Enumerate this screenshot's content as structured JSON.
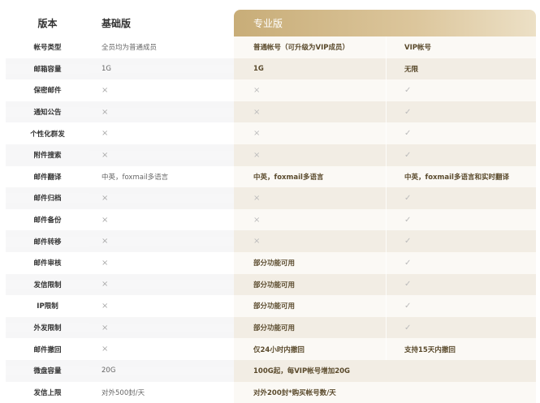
{
  "header": {
    "label": "版本",
    "basic": "基础版",
    "pro": "专业版"
  },
  "colors": {
    "pro_header": "#c8ad78",
    "pro_text": "#5a4a2c",
    "pro_row": "#f2ede4"
  },
  "rows": [
    {
      "label": "帐号类型",
      "basic": "全员均为普通成员",
      "pro": "普通帐号（可升级为VIP成员）",
      "vip": "VIP帐号"
    },
    {
      "label": "邮箱容量",
      "basic": "1G",
      "pro": "1G",
      "vip": "无限"
    },
    {
      "label": "保密邮件",
      "basic": "×",
      "pro": "×",
      "vip": "✓"
    },
    {
      "label": "通知公告",
      "basic": "×",
      "pro": "×",
      "vip": "✓"
    },
    {
      "label": "个性化群发",
      "basic": "×",
      "pro": "×",
      "vip": "✓"
    },
    {
      "label": "附件搜索",
      "basic": "×",
      "pro": "×",
      "vip": "✓"
    },
    {
      "label": "邮件翻译",
      "basic": "中英，foxmail多语言",
      "pro": "中英，foxmail多语言",
      "vip": "中英，foxmail多语言和实时翻译"
    },
    {
      "label": "邮件归档",
      "basic": "×",
      "pro": "×",
      "vip": "✓"
    },
    {
      "label": "邮件备份",
      "basic": "×",
      "pro": "×",
      "vip": "✓"
    },
    {
      "label": "邮件转移",
      "basic": "×",
      "pro": "×",
      "vip": "✓"
    },
    {
      "label": "邮件审核",
      "basic": "×",
      "pro": "部分功能可用",
      "vip": "✓"
    },
    {
      "label": "发信限制",
      "basic": "×",
      "pro": "部分功能可用",
      "vip": "✓"
    },
    {
      "label": "IP限制",
      "basic": "×",
      "pro": "部分功能可用",
      "vip": "✓"
    },
    {
      "label": "外发限制",
      "basic": "×",
      "pro": "部分功能可用",
      "vip": "✓"
    },
    {
      "label": "邮件撤回",
      "basic": "×",
      "pro": "仅24小时内撤回",
      "vip": "支持15天内撤回"
    },
    {
      "label": "微盘容量",
      "basic": "20G",
      "pro_span": "100G起，每VIP帐号增加20G"
    },
    {
      "label": "发信上限",
      "basic": "对外500封/天",
      "pro_span": "对外200封*购买帐号数/天"
    }
  ]
}
